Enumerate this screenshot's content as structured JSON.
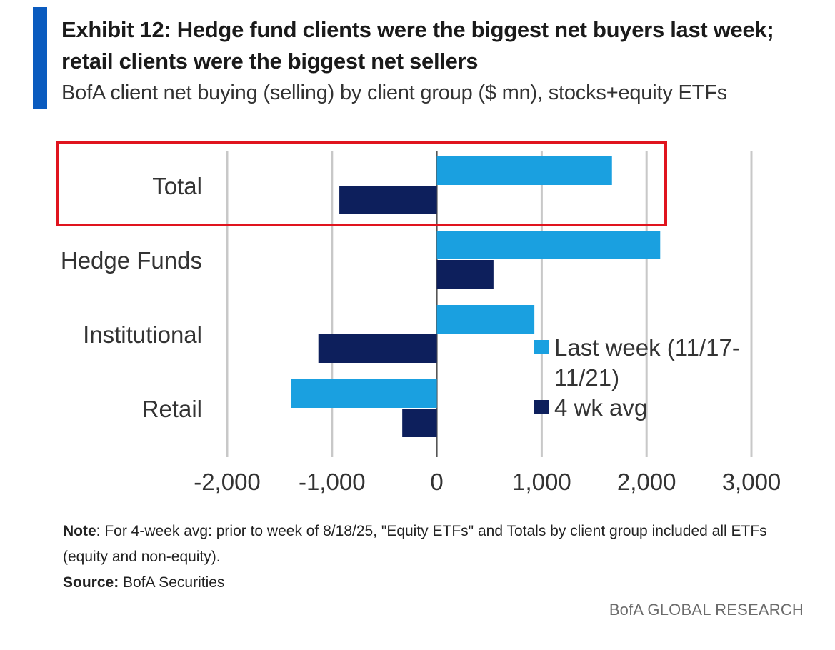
{
  "header": {
    "title_line1": "Exhibit 12: Hedge fund clients were the biggest net buyers last week;",
    "title_line2": "retail clients were the biggest net sellers",
    "subtitle": "BofA client net buying (selling) by client group ($ mn), stocks+equity ETFs"
  },
  "footer": {
    "note_label": "Note",
    "note_text": ": For 4-week avg: prior to week of 8/18/25, \"Equity ETFs\" and Totals by client group included all ETFs (equity and non-equity).",
    "source_label": "Source:",
    "source_text": " BofA Securities",
    "branding": "BofA GLOBAL RESEARCH"
  },
  "colors": {
    "accent": "#0a5bbf",
    "last_week": "#1aa0e0",
    "four_wk_avg": "#0d1f5c",
    "highlight_box": "#e0141e",
    "grid": "#c8c8c8"
  },
  "chart_data": {
    "type": "bar",
    "orientation": "horizontal",
    "categories": [
      "Total",
      "Hedge Funds",
      "Institutional",
      "Retail"
    ],
    "series": [
      {
        "name": "Last week (11/17-11/21)",
        "color": "#1aa0e0",
        "values": [
          1670,
          2130,
          930,
          -1390
        ]
      },
      {
        "name": "4 wk avg",
        "color": "#0d1f5c",
        "values": [
          -930,
          540,
          -1130,
          -330
        ]
      }
    ],
    "xlim": [
      -2000,
      3000
    ],
    "xticks": [
      -2000,
      -1000,
      0,
      1000,
      2000,
      3000
    ],
    "xtick_labels": [
      "-2,000",
      "-1,000",
      "0",
      "1,000",
      "2,000",
      "3,000"
    ],
    "legend_position": "right",
    "legend_labels": [
      [
        "Last week (11/17-",
        "11/21)"
      ],
      [
        "4 wk avg"
      ]
    ],
    "grid": "vertical",
    "highlighted_category": "Total"
  }
}
